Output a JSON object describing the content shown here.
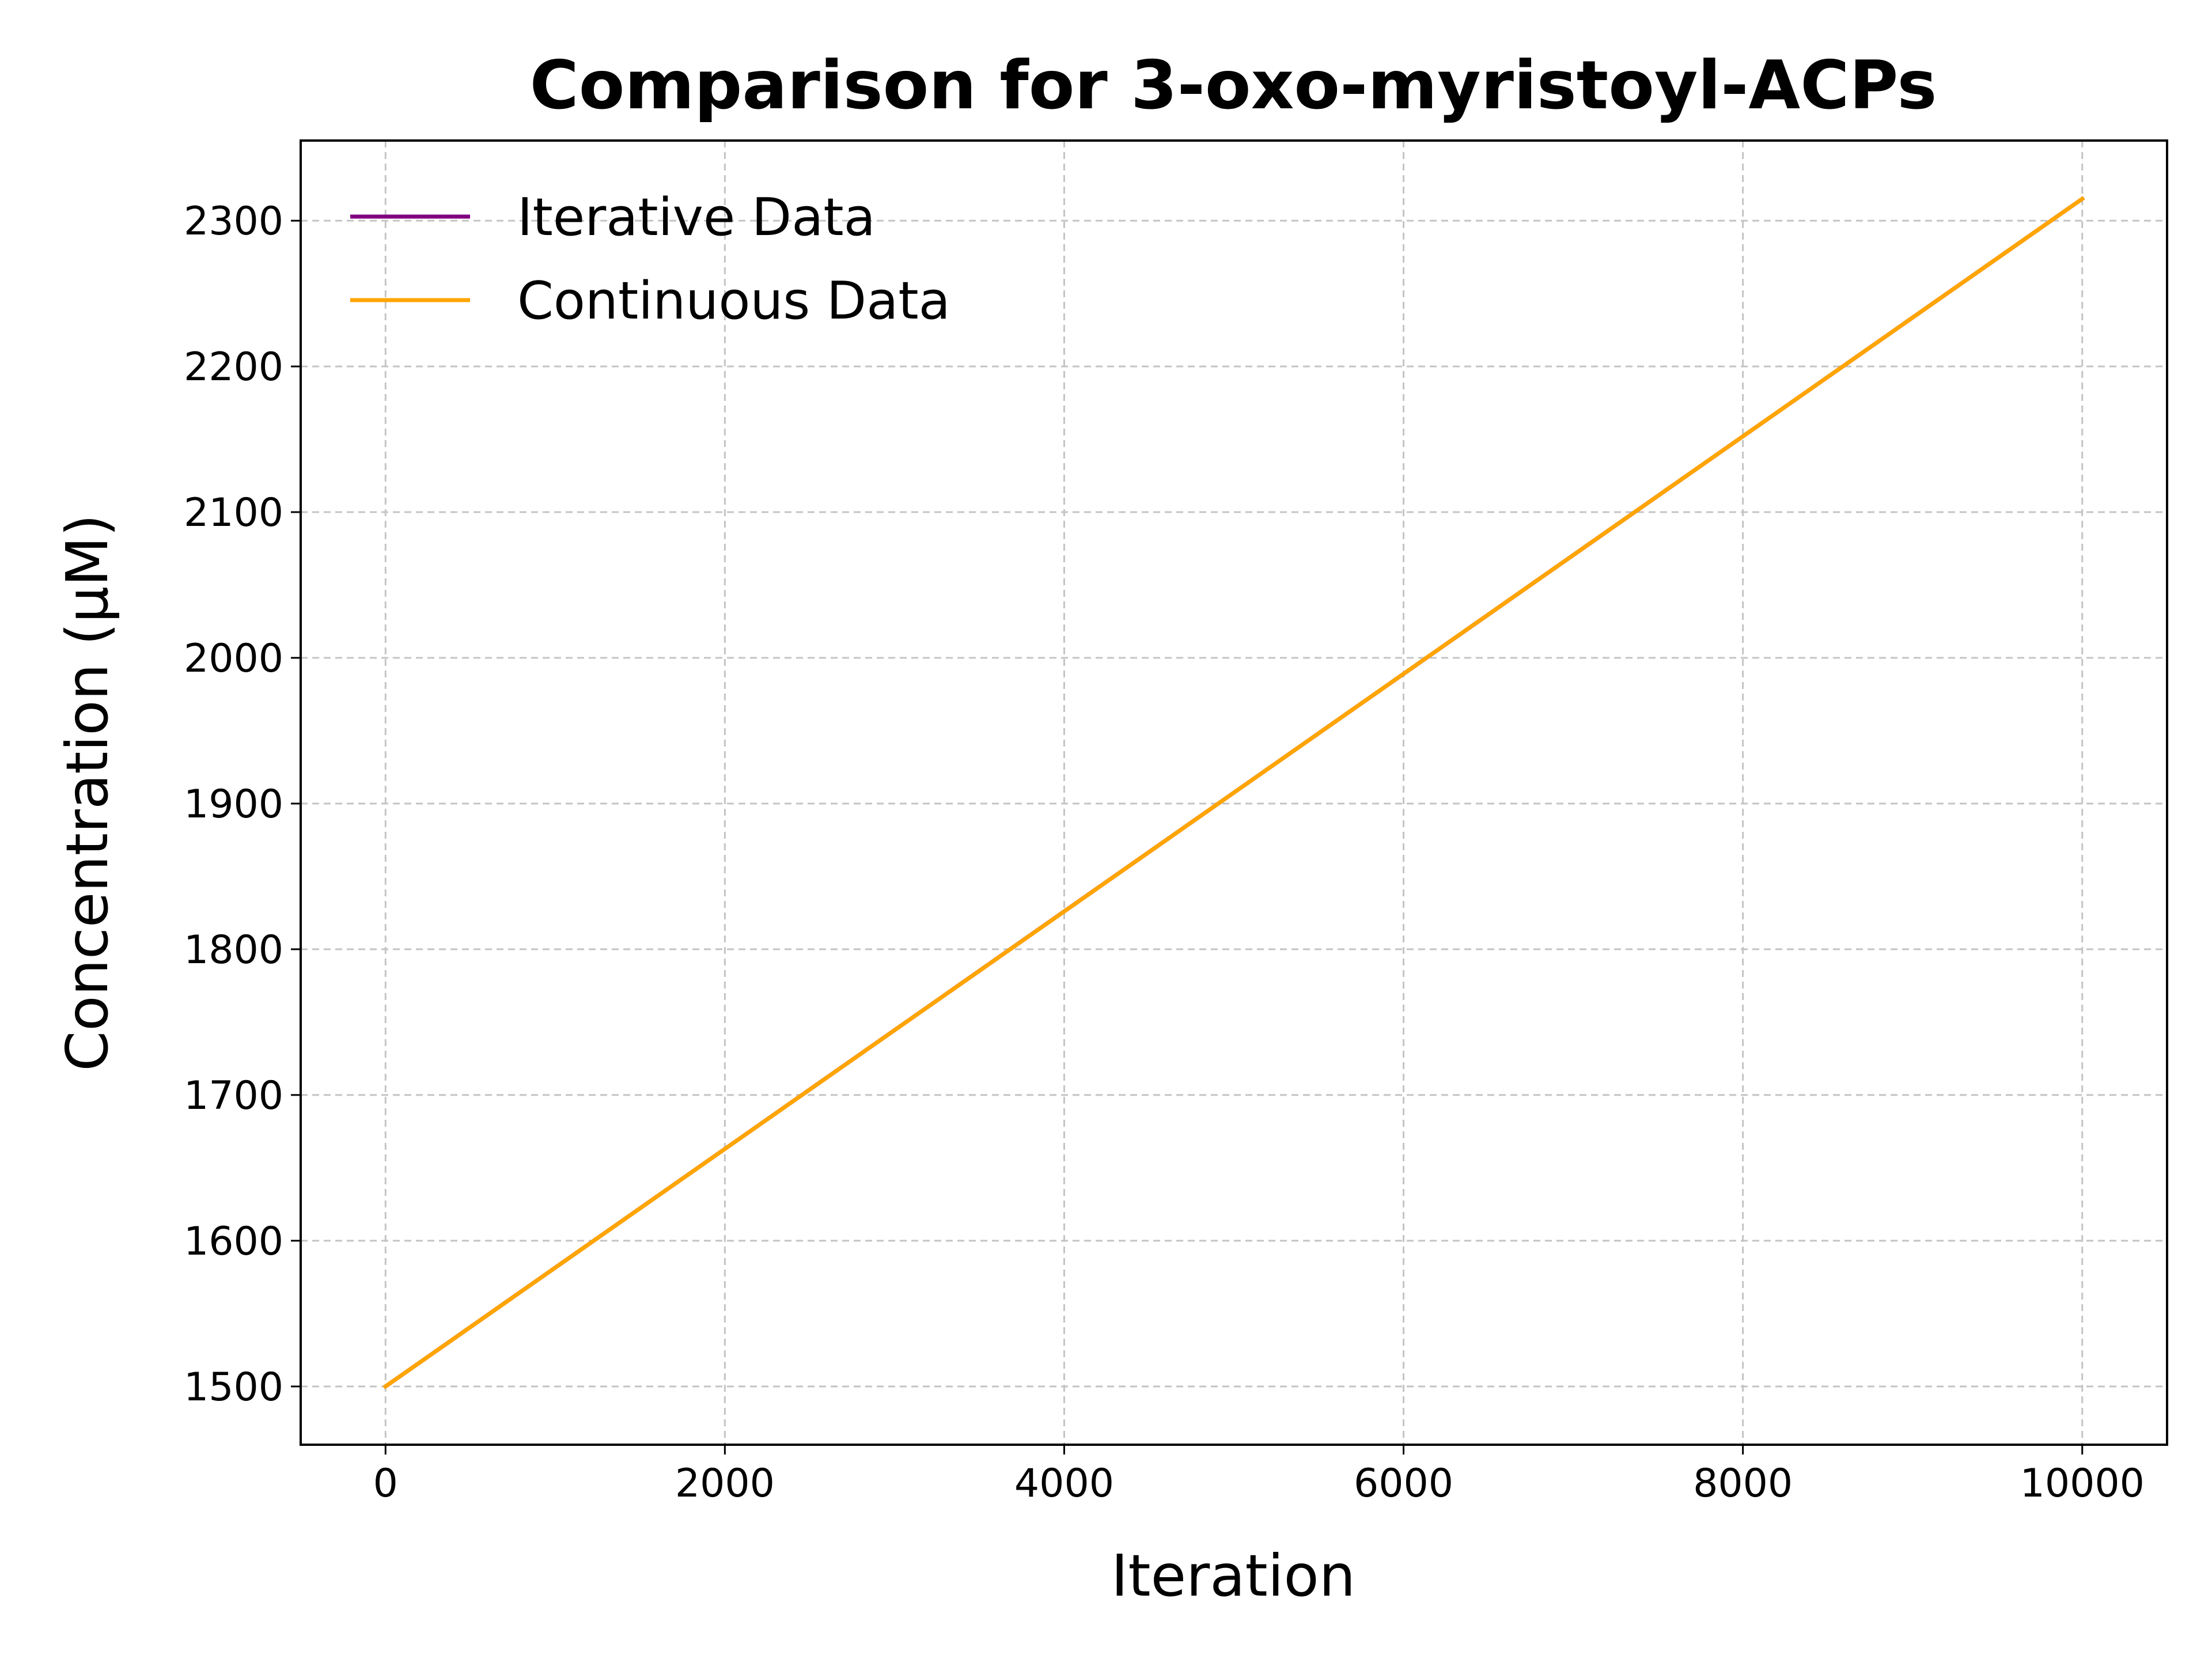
{
  "chart_data": {
    "type": "line",
    "title": "Comparison for 3-oxo-myristoyl-ACPs",
    "xlabel": "Iteration",
    "ylabel": "Concentration (μM)",
    "xlim": [
      -500,
      10500
    ],
    "ylim": [
      1460,
      2355
    ],
    "xticks": [
      0,
      2000,
      4000,
      6000,
      8000,
      10000
    ],
    "yticks": [
      1500,
      1600,
      1700,
      1800,
      1900,
      2000,
      2100,
      2200,
      2300
    ],
    "grid": true,
    "legend_position": "upper-left",
    "series": [
      {
        "name": "Iterative Data",
        "color": "#800080",
        "x": [
          0,
          10000
        ],
        "y": [
          1500,
          2315
        ]
      },
      {
        "name": "Continuous Data",
        "color": "#FFA500",
        "x": [
          0,
          2000,
          4000,
          6000,
          8000,
          10000
        ],
        "y": [
          1500,
          1663,
          1826,
          1989,
          2152,
          2315
        ]
      }
    ]
  }
}
